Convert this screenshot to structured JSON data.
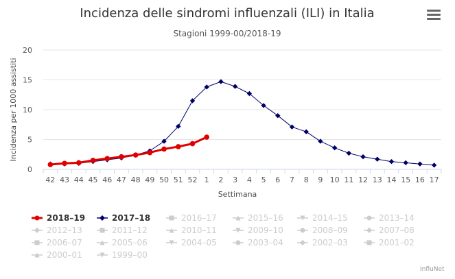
{
  "chart_data": {
    "type": "line",
    "title": "Incidenza delle sindromi influenzali (ILI) in Italia",
    "subtitle": "Stagioni 1999-00/2018-19",
    "xlabel": "Settimana",
    "ylabel": "Incidenza per 1000 assistiti",
    "categories": [
      "42",
      "43",
      "44",
      "45",
      "46",
      "47",
      "48",
      "49",
      "50",
      "51",
      "52",
      "1",
      "2",
      "3",
      "4",
      "5",
      "6",
      "7",
      "8",
      "9",
      "10",
      "11",
      "12",
      "13",
      "14",
      "15",
      "16",
      "17"
    ],
    "y_ticks": [
      "0",
      "5",
      "10",
      "15",
      "20"
    ],
    "ylim": [
      0,
      20
    ],
    "grid": true,
    "legend_position": "bottom",
    "series": [
      {
        "name": "2018–19",
        "color": "#e00000",
        "marker": "circle",
        "active": true,
        "values": [
          0.8,
          1.0,
          1.1,
          1.5,
          1.8,
          2.1,
          2.4,
          2.8,
          3.4,
          3.8,
          4.3,
          5.4,
          null,
          null,
          null,
          null,
          null,
          null,
          null,
          null,
          null,
          null,
          null,
          null,
          null,
          null,
          null,
          null
        ]
      },
      {
        "name": "2017–18",
        "color": "#000066",
        "marker": "diamond",
        "active": true,
        "values": [
          0.9,
          0.9,
          1.0,
          1.3,
          1.6,
          1.9,
          2.4,
          3.1,
          4.7,
          7.2,
          11.5,
          13.8,
          14.7,
          13.9,
          12.7,
          10.7,
          9.0,
          7.1,
          6.3,
          4.7,
          3.6,
          2.7,
          2.1,
          1.7,
          1.3,
          1.1,
          0.9,
          0.7
        ]
      },
      {
        "name": "2016–17",
        "color": "#cccccc",
        "marker": "square",
        "active": false
      },
      {
        "name": "2015–16",
        "color": "#cccccc",
        "marker": "triangle",
        "active": false
      },
      {
        "name": "2014–15",
        "color": "#cccccc",
        "marker": "triangle-down",
        "active": false
      },
      {
        "name": "2013–14",
        "color": "#cccccc",
        "marker": "circle",
        "active": false
      },
      {
        "name": "2012–13",
        "color": "#cccccc",
        "marker": "diamond",
        "active": false
      },
      {
        "name": "2011–12",
        "color": "#cccccc",
        "marker": "square",
        "active": false
      },
      {
        "name": "2010–11",
        "color": "#cccccc",
        "marker": "triangle",
        "active": false
      },
      {
        "name": "2009–10",
        "color": "#cccccc",
        "marker": "triangle-down",
        "active": false
      },
      {
        "name": "2008–09",
        "color": "#cccccc",
        "marker": "circle",
        "active": false
      },
      {
        "name": "2007–08",
        "color": "#cccccc",
        "marker": "diamond",
        "active": false
      },
      {
        "name": "2006–07",
        "color": "#cccccc",
        "marker": "square",
        "active": false
      },
      {
        "name": "2005–06",
        "color": "#cccccc",
        "marker": "triangle",
        "active": false
      },
      {
        "name": "2004–05",
        "color": "#cccccc",
        "marker": "triangle-down",
        "active": false
      },
      {
        "name": "2003–04",
        "color": "#cccccc",
        "marker": "circle",
        "active": false
      },
      {
        "name": "2002–03",
        "color": "#cccccc",
        "marker": "diamond",
        "active": false
      },
      {
        "name": "2001–02",
        "color": "#cccccc",
        "marker": "square",
        "active": false
      },
      {
        "name": "2000–01",
        "color": "#cccccc",
        "marker": "triangle",
        "active": false
      },
      {
        "name": "1999–00",
        "color": "#cccccc",
        "marker": "triangle-down",
        "active": false
      }
    ]
  },
  "menu_icon": "hamburger-menu-icon",
  "credit": "InfluNet"
}
